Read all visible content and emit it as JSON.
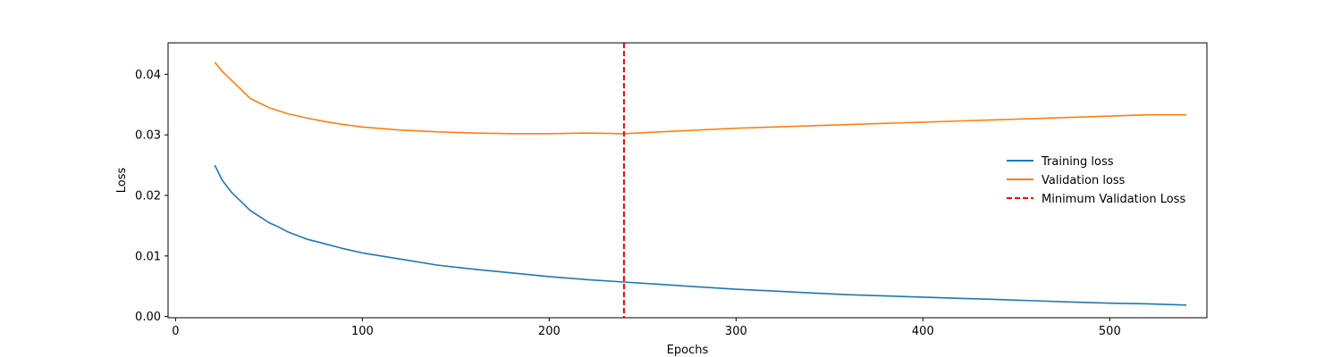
{
  "chart_data": {
    "type": "line",
    "title": "",
    "xlabel": "Epochs",
    "ylabel": "Loss",
    "xlim": [
      -4,
      552
    ],
    "ylim": [
      -0.0002,
      0.0452
    ],
    "xticks": [
      0,
      100,
      200,
      300,
      400,
      500
    ],
    "yticks": [
      0.0,
      0.01,
      0.02,
      0.03,
      0.04
    ],
    "ytick_labels": [
      "0.00",
      "0.01",
      "0.02",
      "0.03",
      "0.04"
    ],
    "grid": false,
    "legend_position": "center-right",
    "series": [
      {
        "name": "Training loss",
        "color": "#1f77b4",
        "x": [
          21,
          25,
          30,
          35,
          40,
          45,
          50,
          55,
          60,
          70,
          80,
          90,
          100,
          120,
          140,
          160,
          180,
          200,
          220,
          240,
          260,
          280,
          300,
          320,
          340,
          360,
          380,
          400,
          420,
          440,
          460,
          480,
          500,
          520,
          541
        ],
        "values": [
          0.025,
          0.0225,
          0.0205,
          0.019,
          0.0175,
          0.0165,
          0.0155,
          0.0148,
          0.014,
          0.0128,
          0.012,
          0.0112,
          0.0105,
          0.0095,
          0.0085,
          0.0078,
          0.0072,
          0.0066,
          0.0061,
          0.0057,
          0.0053,
          0.0049,
          0.0045,
          0.0042,
          0.0039,
          0.0036,
          0.0034,
          0.0032,
          0.003,
          0.0028,
          0.0026,
          0.0024,
          0.0022,
          0.0021,
          0.0019
        ]
      },
      {
        "name": "Validation loss",
        "color": "#ff7f0e",
        "x": [
          21,
          25,
          30,
          35,
          40,
          50,
          60,
          70,
          80,
          90,
          100,
          120,
          140,
          160,
          180,
          200,
          220,
          240,
          260,
          280,
          300,
          320,
          340,
          360,
          380,
          400,
          420,
          440,
          460,
          480,
          500,
          520,
          541
        ],
        "values": [
          0.042,
          0.0405,
          0.039,
          0.0375,
          0.036,
          0.0345,
          0.0335,
          0.0328,
          0.0322,
          0.0317,
          0.0313,
          0.0308,
          0.0305,
          0.0303,
          0.0302,
          0.0302,
          0.0303,
          0.0302,
          0.0305,
          0.0308,
          0.0311,
          0.0313,
          0.0315,
          0.0317,
          0.0319,
          0.0321,
          0.0323,
          0.0325,
          0.0327,
          0.0329,
          0.0331,
          0.0333,
          0.0333
        ]
      }
    ],
    "vline": {
      "name": "Minimum Validation Loss",
      "x": 240,
      "color": "#ff0000",
      "style": "dashed"
    }
  }
}
